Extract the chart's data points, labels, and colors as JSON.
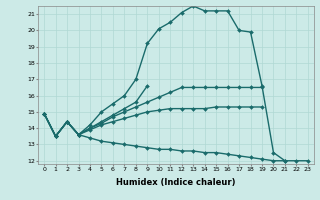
{
  "xlabel": "Humidex (Indice chaleur)",
  "ylabel": "",
  "background_color": "#cceae7",
  "line_color": "#1a6b6b",
  "xlim": [
    -0.5,
    23.5
  ],
  "ylim": [
    11.8,
    21.5
  ],
  "yticks": [
    12,
    13,
    14,
    15,
    16,
    17,
    18,
    19,
    20,
    21
  ],
  "xticks": [
    0,
    1,
    2,
    3,
    4,
    5,
    6,
    7,
    8,
    9,
    10,
    11,
    12,
    13,
    14,
    15,
    16,
    17,
    18,
    19,
    20,
    21,
    22,
    23
  ],
  "lines": [
    {
      "x": [
        0,
        1,
        2,
        3,
        4,
        5,
        6,
        7,
        8,
        9,
        10,
        11,
        12,
        13,
        14,
        15,
        16,
        17,
        18,
        19,
        20,
        21,
        22
      ],
      "y": [
        14.9,
        13.5,
        14.4,
        13.6,
        14.2,
        15.0,
        15.5,
        16.0,
        17.0,
        19.2,
        20.1,
        20.5,
        21.1,
        21.5,
        21.2,
        21.2,
        21.2,
        20.0,
        19.9,
        16.6,
        12.5,
        12.0,
        null
      ]
    },
    {
      "x": [
        0,
        1,
        2,
        3,
        4,
        5,
        6,
        7,
        8,
        9,
        10,
        11,
        12,
        13,
        14,
        15,
        16,
        17,
        18,
        19,
        20
      ],
      "y": [
        14.9,
        13.5,
        14.4,
        13.6,
        14.0,
        14.3,
        14.7,
        15.0,
        15.3,
        15.6,
        15.9,
        16.2,
        16.5,
        16.5,
        16.5,
        16.5,
        16.5,
        16.5,
        16.5,
        16.5,
        null
      ]
    },
    {
      "x": [
        0,
        1,
        2,
        3,
        4,
        5,
        6,
        7,
        8,
        9,
        10
      ],
      "y": [
        14.9,
        13.5,
        14.4,
        13.6,
        14.0,
        14.4,
        14.8,
        15.2,
        15.6,
        16.6,
        null
      ]
    },
    {
      "x": [
        0,
        1,
        2,
        3,
        4,
        5,
        6,
        7,
        8,
        9,
        10,
        11,
        12,
        13,
        14,
        15,
        16,
        17,
        18,
        19,
        20,
        21
      ],
      "y": [
        14.9,
        13.5,
        14.4,
        13.6,
        13.9,
        14.2,
        14.4,
        14.6,
        14.8,
        15.0,
        15.1,
        15.2,
        15.2,
        15.2,
        15.2,
        15.3,
        15.3,
        15.3,
        15.3,
        15.3,
        null,
        null
      ]
    },
    {
      "x": [
        0,
        1,
        2,
        3,
        4,
        5,
        6,
        7,
        8,
        9,
        10,
        11,
        12,
        13,
        14,
        15,
        16,
        17,
        18,
        19,
        20,
        21,
        22,
        23
      ],
      "y": [
        14.9,
        13.5,
        14.4,
        13.6,
        13.4,
        13.2,
        13.1,
        13.0,
        12.9,
        12.8,
        12.7,
        12.7,
        12.6,
        12.6,
        12.5,
        12.5,
        12.4,
        12.3,
        12.2,
        12.1,
        12.0,
        12.0,
        12.0,
        12.0
      ]
    }
  ]
}
